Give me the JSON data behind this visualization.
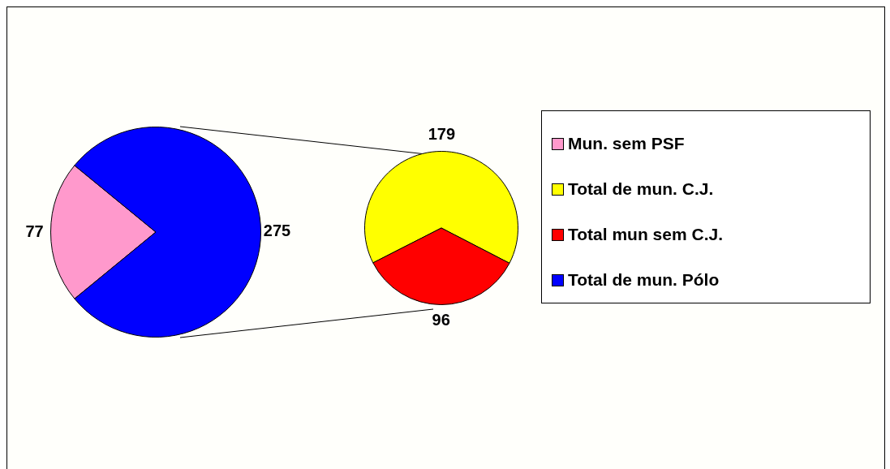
{
  "chart_data": [
    {
      "type": "pie",
      "categories": [
        "Mun. sem PSF",
        "Total de mun. Pólo"
      ],
      "values": [
        77,
        275
      ],
      "colors": [
        "#ff99cc",
        "#0000ff"
      ],
      "data_labels": true,
      "legend": "right"
    },
    {
      "type": "pie",
      "categories": [
        "Total de mun. C.J.",
        "Total mun sem C.J."
      ],
      "values": [
        179,
        96
      ],
      "colors": [
        "#ffff00",
        "#ff0000"
      ],
      "data_labels": true,
      "legend": "right"
    }
  ]
}
